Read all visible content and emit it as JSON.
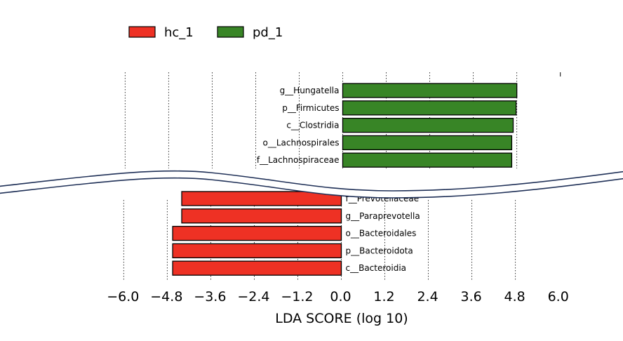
{
  "chart_data": {
    "type": "bar",
    "orientation": "horizontal",
    "xlabel": "LDA SCORE (log 10)",
    "xticks": [
      -6.0,
      -4.8,
      -3.6,
      -2.4,
      -1.2,
      0.0,
      1.2,
      2.4,
      3.6,
      4.8,
      6.0
    ],
    "xtick_labels": [
      "−6.0",
      "−4.8",
      "−3.6",
      "−2.4",
      "−1.2",
      "0.0",
      "1.2",
      "2.4",
      "3.6",
      "4.8",
      "6.0"
    ],
    "grid": "vertical dotted",
    "axis_break": true,
    "legend": {
      "placement": "top-left",
      "entries": [
        {
          "name": "hc_1",
          "color": "#ee3124"
        },
        {
          "name": "pd_1",
          "color": "#388526"
        }
      ]
    },
    "series": [
      {
        "name": "pd_1",
        "color": "#388526",
        "categories": [
          "g__Hungatella",
          "p__Firmicutes",
          "c__Clostridia",
          "o__Lachnospirales",
          "f__Lachnospiraceae"
        ],
        "values": [
          4.8,
          4.78,
          4.7,
          4.66,
          4.66
        ]
      },
      {
        "name": "hc_1",
        "color": "#ee3124",
        "categories": [
          "f__Prevotellaceae",
          "g__Paraprevotella",
          "o__Bacteroidales",
          "p__Bacteroidota",
          "c__Bacteroidia"
        ],
        "values": [
          -4.4,
          -4.4,
          -4.65,
          -4.65,
          -4.65
        ]
      }
    ]
  }
}
